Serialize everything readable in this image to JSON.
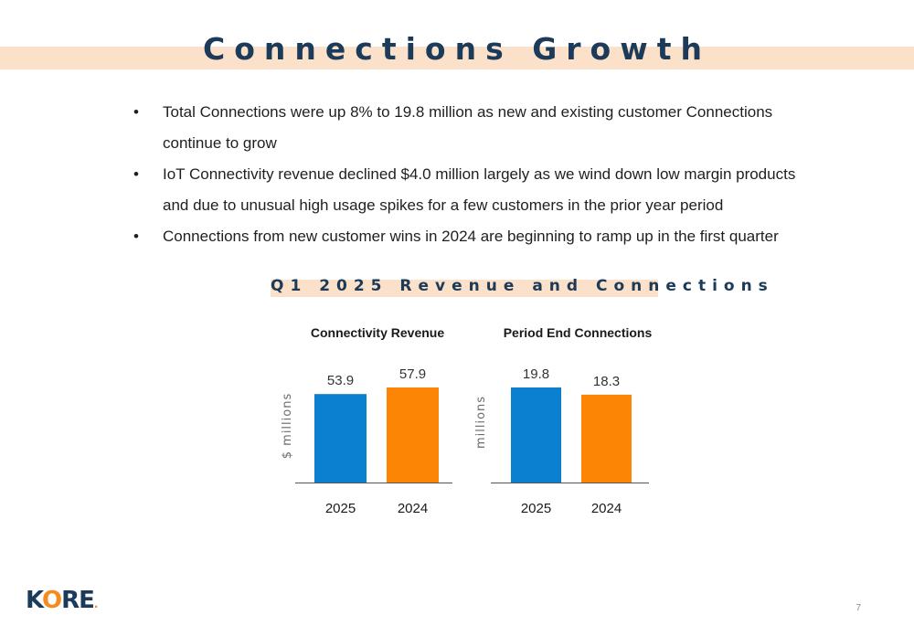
{
  "slide": {
    "title": "Connections Growth",
    "page_number": "7",
    "logo_text": "KORE"
  },
  "bullets": [
    "Total Connections were up 8% to 19.8 million as new and existing customer Connections continue to grow",
    "IoT Connectivity revenue declined $4.0 million largely as we wind down low margin products and due to unusual high usage spikes for a few customers in the prior year period",
    "Connections from new customer wins in 2024 are beginning to ramp up in the first quarter"
  ],
  "charts_heading": "Q1 2025 Revenue and Connections",
  "colors": {
    "title": "#1c3a5a",
    "band": "#fbe1c9",
    "bar_2025": "#0b80d0",
    "bar_2024": "#fd8506",
    "axis": "#555555",
    "logo_accent": "#f38b1f"
  },
  "chart_data": [
    {
      "type": "bar",
      "title": "Connectivity Revenue",
      "ylabel": "$ millions",
      "categories": [
        "2025",
        "2024"
      ],
      "values": [
        53.9,
        57.9
      ],
      "data_labels": [
        "53.9",
        "57.9"
      ],
      "ylim": [
        0,
        57.9
      ],
      "grid": false,
      "legend": "none"
    },
    {
      "type": "bar",
      "title": "Period End Connections",
      "ylabel": "millions",
      "categories": [
        "2025",
        "2024"
      ],
      "values": [
        19.8,
        18.3
      ],
      "data_labels": [
        "19.8",
        "18.3"
      ],
      "ylim": [
        0,
        19.8
      ],
      "grid": false,
      "legend": "none"
    }
  ]
}
